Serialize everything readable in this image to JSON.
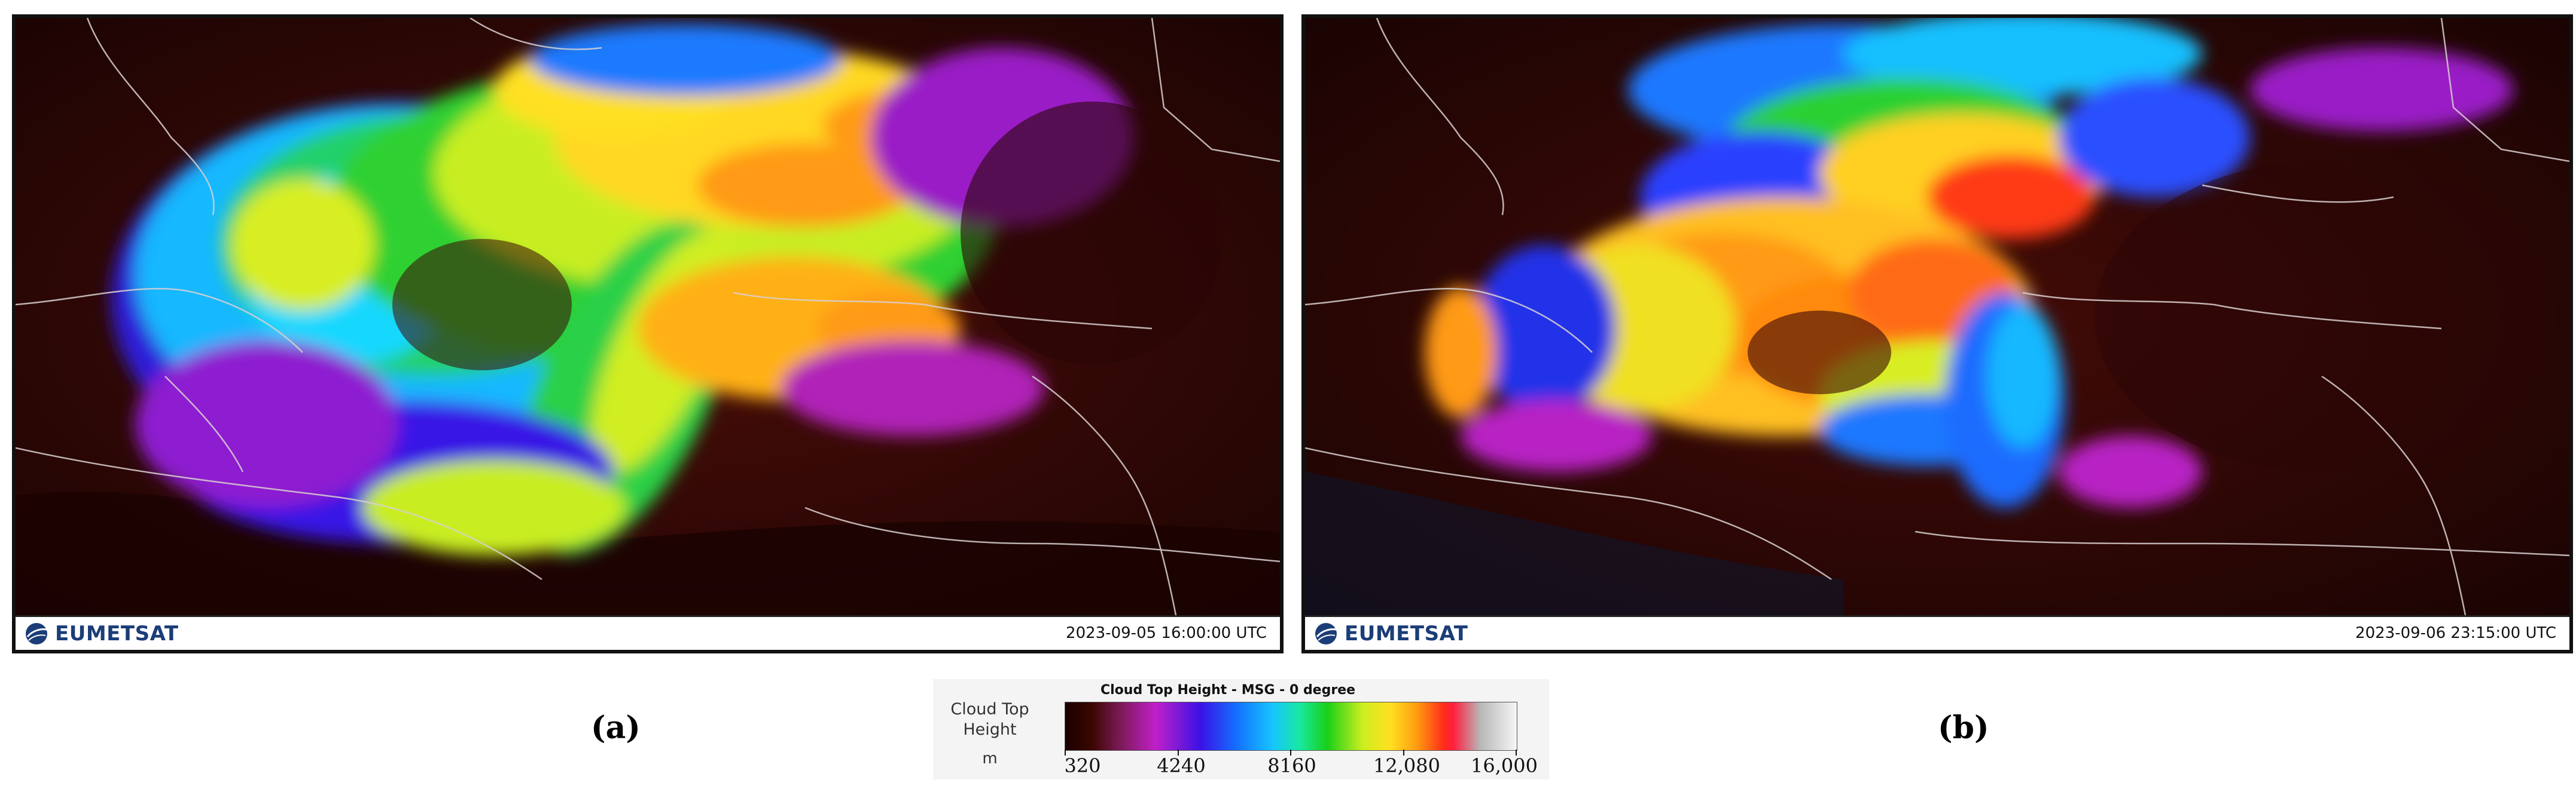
{
  "panels": [
    {
      "logo": "EUMETSAT",
      "timestamp": "2023-09-05 16:00:00 UTC",
      "label": "(a)"
    },
    {
      "logo": "EUMETSAT",
      "timestamp": "2023-09-06 23:15:00 UTC",
      "label": "(b)"
    }
  ],
  "legend": {
    "title": "Cloud Top Height - MSG - 0 degree",
    "quantity_line1": "Cloud Top",
    "quantity_line2": "Height",
    "unit": "m",
    "ticks": [
      "320",
      "4240",
      "8160",
      "12,080",
      "16,000"
    ]
  },
  "colors": {
    "background_dark": "#2a0705",
    "coastline": "#d8d0d0",
    "logo_blue": "#1b3d78"
  }
}
